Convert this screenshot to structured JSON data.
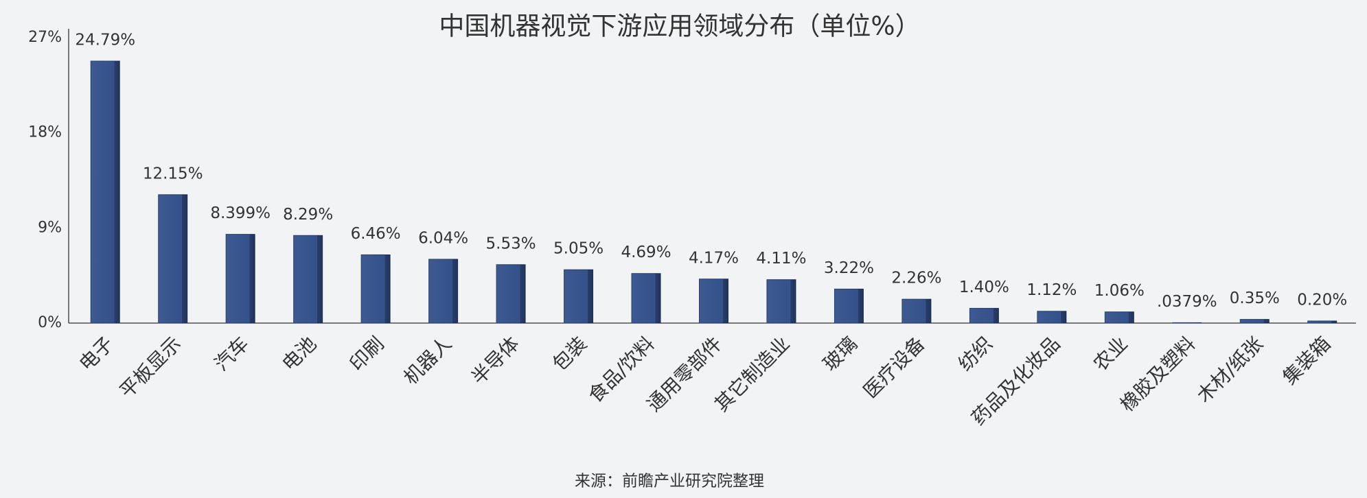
{
  "chart_data": {
    "type": "bar",
    "title": "中国机器视觉下游应用领域分布（单位%）",
    "source": "来源：前瞻产业研究院整理",
    "categories": [
      "电子",
      "平板显示",
      "汽车",
      "电池",
      "印刷",
      "机器人",
      "半导体",
      "包装",
      "食品/饮料",
      "通用零部件",
      "其它制造业",
      "玻璃",
      "医疗设备",
      "纺织",
      "药品及化妆品",
      "农业",
      "橡胶及塑料",
      "木材/纸张",
      "集装箱"
    ],
    "values": [
      24.79,
      12.15,
      8.399,
      8.29,
      6.46,
      6.04,
      5.53,
      5.05,
      4.69,
      4.17,
      4.11,
      3.22,
      2.26,
      1.4,
      1.12,
      1.06,
      0.0379,
      0.35,
      0.2
    ],
    "value_labels": [
      "24.79%",
      "12.15%",
      "8.399%",
      "8.29%",
      "6.46%",
      "6.04%",
      "5.53%",
      "5.05%",
      "4.69%",
      "4.17%",
      "4.11%",
      "3.22%",
      "2.26%",
      "1.40%",
      "1.12%",
      "1.06%",
      ".0379%",
      "0.35%",
      "0.20%"
    ],
    "color": "#34518b",
    "ylim": [
      0,
      27
    ],
    "yticks": [
      {
        "value": 0,
        "label": "0%"
      },
      {
        "value": 9,
        "label": "9%"
      },
      {
        "value": 18,
        "label": "18%"
      },
      {
        "value": 27,
        "label": "27%"
      }
    ],
    "grid": false
  }
}
